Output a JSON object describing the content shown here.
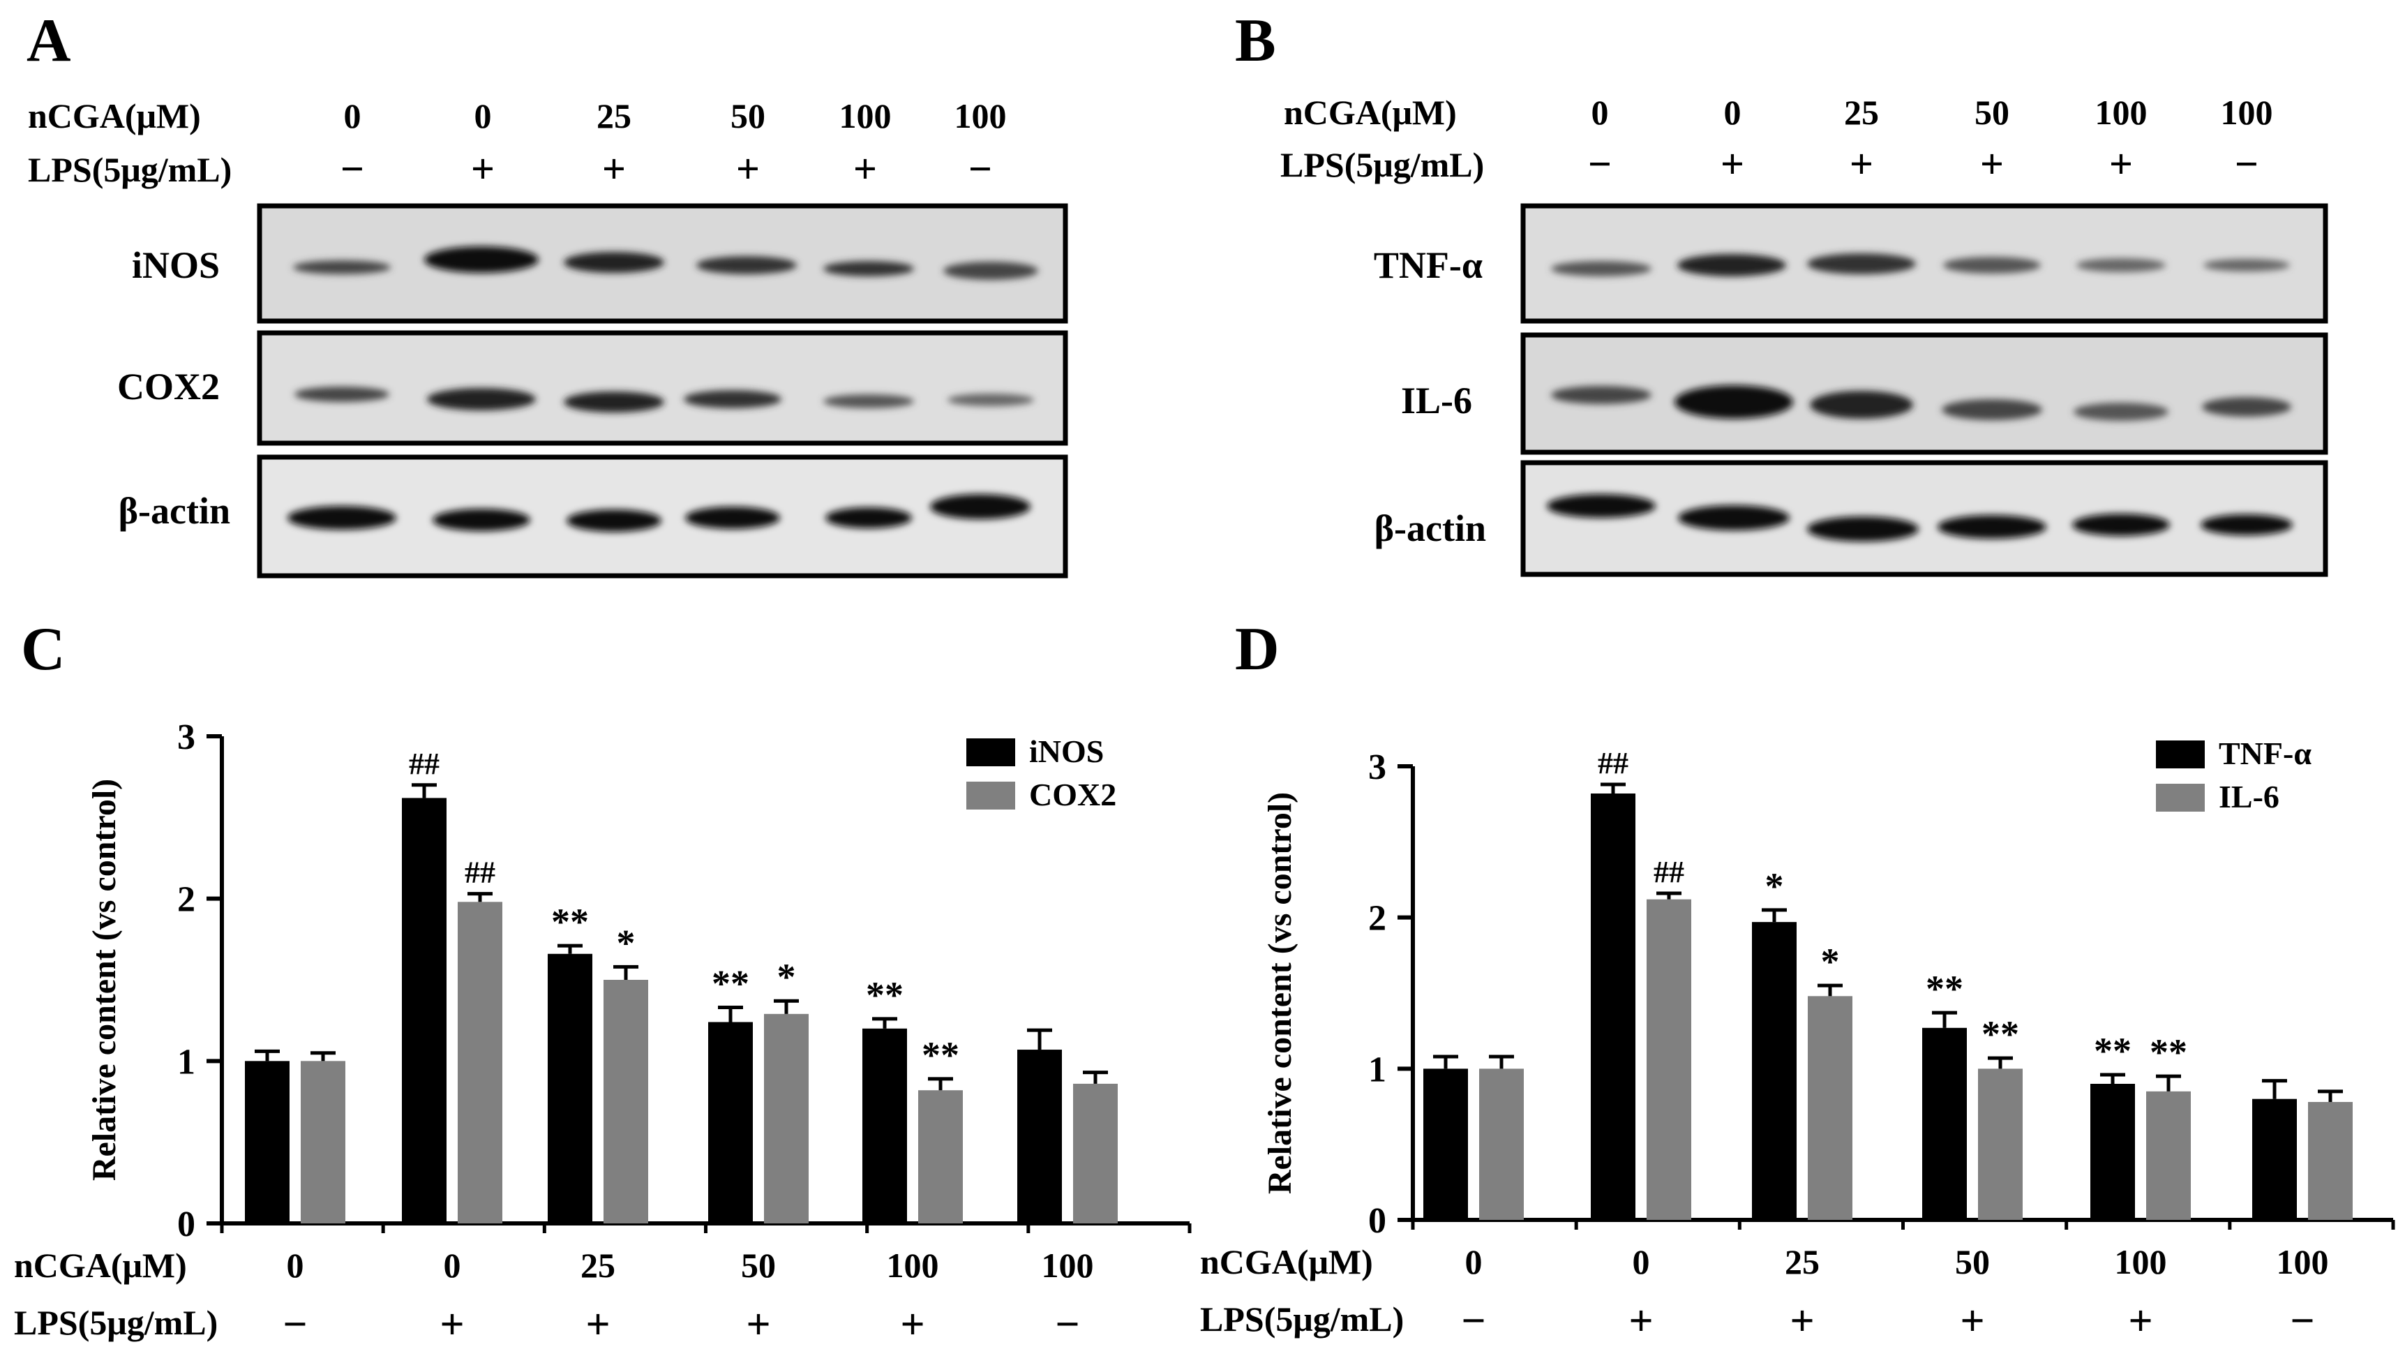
{
  "panels": {
    "A": "A",
    "B": "B",
    "C": "C",
    "D": "D"
  },
  "treatment": {
    "ncga_label": "nCGA(μM)",
    "lps_label": "LPS(5μg/mL)",
    "ncga_values": [
      "0",
      "0",
      "25",
      "50",
      "100",
      "100"
    ],
    "lps_values": [
      "−",
      "+",
      "+",
      "+",
      "+",
      "−"
    ]
  },
  "blots": {
    "A": {
      "rows": [
        "iNOS",
        "COX2",
        "β-actin"
      ]
    },
    "B": {
      "rows": [
        "TNF-α",
        "IL-6",
        "β-actin"
      ]
    }
  },
  "chart_data": [
    {
      "panel": "C",
      "type": "bar",
      "ylabel": "Relative content (vs control)",
      "ylim": [
        0,
        3
      ],
      "yticks": [
        0,
        1,
        2,
        3
      ],
      "legend_position": "top-right",
      "series": [
        {
          "name": "iNOS",
          "color": "#000000",
          "values": [
            1.0,
            2.62,
            1.66,
            1.24,
            1.2,
            1.07
          ],
          "errors": [
            0.06,
            0.08,
            0.05,
            0.09,
            0.06,
            0.12
          ],
          "annotations": [
            "",
            "##",
            "**",
            "**",
            "**",
            ""
          ]
        },
        {
          "name": "COX2",
          "color": "#808080",
          "values": [
            1.0,
            1.98,
            1.5,
            1.29,
            0.82,
            0.86
          ],
          "errors": [
            0.05,
            0.05,
            0.08,
            0.08,
            0.07,
            0.07
          ],
          "annotations": [
            "",
            "##",
            "*",
            "*",
            "**",
            ""
          ]
        }
      ]
    },
    {
      "panel": "D",
      "type": "bar",
      "ylabel": "Relative content (vs control)",
      "ylim": [
        0,
        3
      ],
      "yticks": [
        0,
        1,
        2,
        3
      ],
      "legend_position": "top-right",
      "series": [
        {
          "name": "TNF-α",
          "color": "#000000",
          "values": [
            1.0,
            2.82,
            1.97,
            1.27,
            0.9,
            0.8
          ],
          "errors": [
            0.08,
            0.06,
            0.08,
            0.1,
            0.06,
            0.12
          ],
          "annotations": [
            "",
            "##",
            "*",
            "**",
            "**",
            ""
          ]
        },
        {
          "name": "IL-6",
          "color": "#808080",
          "values": [
            1.0,
            2.12,
            1.48,
            1.0,
            0.85,
            0.78
          ],
          "errors": [
            0.08,
            0.04,
            0.07,
            0.07,
            0.1,
            0.07
          ],
          "annotations": [
            "",
            "##",
            "*",
            "**",
            "**",
            ""
          ]
        }
      ]
    }
  ]
}
